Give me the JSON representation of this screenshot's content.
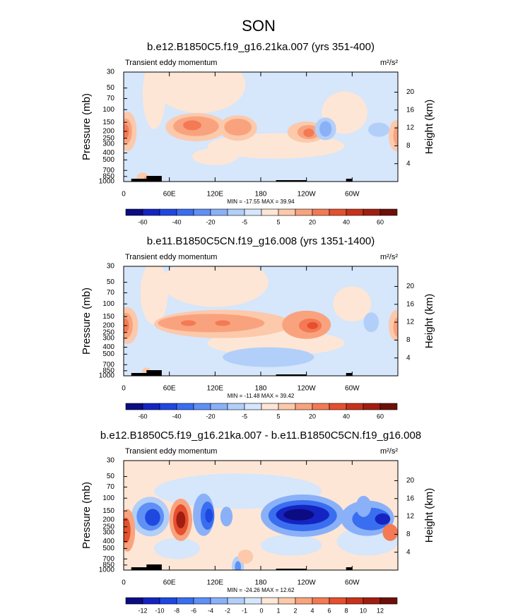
{
  "title": "SON",
  "chart_data": [
    {
      "type": "contour",
      "title": "b.e12.B1850C5.f19_g16.21ka.007 (yrs 351-400)",
      "left_label": "Transient eddy momentum",
      "units": "m²/s²",
      "ylabel": "Pressure (mb)",
      "y2label": "Height (km)",
      "ylog": true,
      "xlim": [
        0,
        360
      ],
      "xticks": [
        0,
        {
          "value": 60,
          "label": "60E"
        },
        {
          "value": 120,
          "label": "120E"
        },
        180,
        {
          "value": 240,
          "label": "120W"
        },
        {
          "value": 300,
          "label": "60W"
        }
      ],
      "ylim": [
        1000,
        30
      ],
      "yticks": [
        30,
        50,
        70,
        100,
        150,
        200,
        250,
        300,
        400,
        500,
        700,
        850,
        1000
      ],
      "y2lim": [
        0,
        24.5
      ],
      "y2ticks": [
        4,
        8,
        12,
        16,
        20
      ],
      "stats": "MIN = -17.55  MAX = 39.94",
      "colorbar_ticks": [
        -60,
        -40,
        -20,
        -5,
        5,
        20,
        40,
        60
      ],
      "colorbar_colors": [
        "#0b0b82",
        "#1524c0",
        "#1f48e0",
        "#3a6ef0",
        "#5e90f5",
        "#8ab1f8",
        "#b2cff9",
        "#d6e6fb",
        "#fde6d6",
        "#fcc9ab",
        "#f9a37e",
        "#f37a55",
        "#e5502f",
        "#c8321c",
        "#a01e10",
        "#6e0f08"
      ]
    },
    {
      "type": "contour",
      "title": "b.e11.B1850C5CN.f19_g16.008 (yrs 1351-1400)",
      "left_label": "Transient eddy momentum",
      "units": "m²/s²",
      "ylabel": "Pressure (mb)",
      "y2label": "Height (km)",
      "ylog": true,
      "xlim": [
        0,
        360
      ],
      "xticks": [
        0,
        {
          "value": 60,
          "label": "60E"
        },
        {
          "value": 120,
          "label": "120E"
        },
        180,
        {
          "value": 240,
          "label": "120W"
        },
        {
          "value": 300,
          "label": "60W"
        }
      ],
      "ylim": [
        1000,
        30
      ],
      "yticks": [
        30,
        50,
        70,
        100,
        150,
        200,
        250,
        300,
        400,
        500,
        700,
        850,
        1000
      ],
      "y2lim": [
        0,
        24.5
      ],
      "y2ticks": [
        4,
        8,
        12,
        16,
        20
      ],
      "stats": "MIN = -11.48  MAX = 39.42",
      "colorbar_ticks": [
        -60,
        -40,
        -20,
        -5,
        5,
        20,
        40,
        60
      ],
      "colorbar_colors": [
        "#0b0b82",
        "#1524c0",
        "#1f48e0",
        "#3a6ef0",
        "#5e90f5",
        "#8ab1f8",
        "#b2cff9",
        "#d6e6fb",
        "#fde6d6",
        "#fcc9ab",
        "#f9a37e",
        "#f37a55",
        "#e5502f",
        "#c8321c",
        "#a01e10",
        "#6e0f08"
      ]
    },
    {
      "type": "contour",
      "title": "b.e12.B1850C5.f19_g16.21ka.007 - b.e11.B1850C5CN.f19_g16.008",
      "left_label": "Transient eddy momentum",
      "units": "m²/s²",
      "ylabel": "Pressure (mb)",
      "y2label": "Height (km)",
      "ylog": true,
      "xlim": [
        0,
        360
      ],
      "xticks": [
        0,
        {
          "value": 60,
          "label": "60E"
        },
        {
          "value": 120,
          "label": "120E"
        },
        180,
        {
          "value": 240,
          "label": "120W"
        },
        {
          "value": 300,
          "label": "60W"
        }
      ],
      "ylim": [
        1000,
        30
      ],
      "yticks": [
        30,
        50,
        70,
        100,
        150,
        200,
        250,
        300,
        400,
        500,
        700,
        850,
        1000
      ],
      "y2lim": [
        0,
        24.5
      ],
      "y2ticks": [
        4,
        8,
        12,
        16,
        20
      ],
      "stats": "MIN = -24.26  MAX = 12.62",
      "colorbar_ticks": [
        -12,
        -10,
        -8,
        -6,
        -4,
        -2,
        -1,
        0,
        1,
        2,
        4,
        6,
        8,
        10,
        12
      ],
      "colorbar_colors": [
        "#0b0b82",
        "#1524c0",
        "#1f48e0",
        "#3a6ef0",
        "#5e90f5",
        "#8ab1f8",
        "#b2cff9",
        "#d6e6fb",
        "#fde6d6",
        "#fcc9ab",
        "#f9a37e",
        "#f37a55",
        "#e5502f",
        "#c8321c",
        "#a01e10",
        "#6e0f08"
      ]
    }
  ]
}
